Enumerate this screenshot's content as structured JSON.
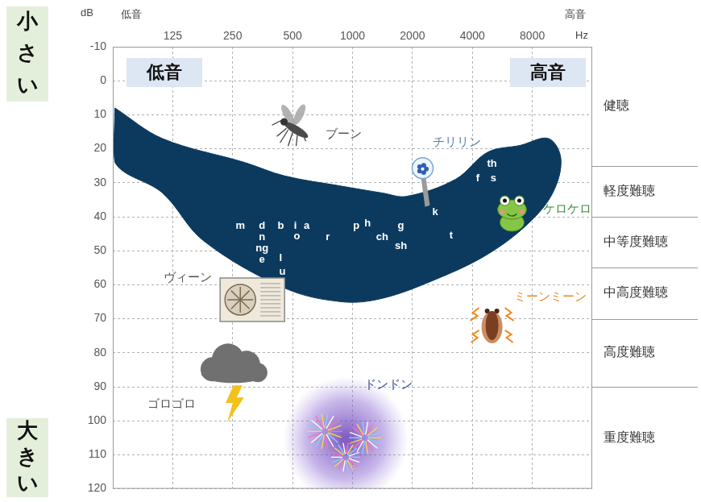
{
  "chart_data": {
    "type": "area",
    "y_unit": "dB",
    "x_unit": "Hz",
    "x_end_labels": [
      "低音",
      "高音"
    ],
    "region_labels": [
      "低音",
      "高音"
    ],
    "loudness_labels": [
      "小さい",
      "大きい"
    ],
    "xlim": [
      62.5,
      16000
    ],
    "xticks": [
      125,
      250,
      500,
      1000,
      2000,
      4000,
      8000
    ],
    "log": "x",
    "ylim": [
      -10,
      120
    ],
    "yticks": [
      -10,
      0,
      10,
      20,
      30,
      40,
      50,
      60,
      70,
      80,
      90,
      100,
      110,
      120
    ],
    "grid": true,
    "series": [
      {
        "color": "#0b3a5e",
        "x": [
          64,
          111,
          286,
          457,
          881,
          1410,
          1870,
          3290,
          4780,
          6960,
          9660,
          11140,
          10130,
          7630,
          4780,
          2720,
          1410,
          881,
          457,
          178,
          111,
          64
        ],
        "values": [
          8,
          17,
          24,
          28,
          31,
          33,
          34,
          29,
          21,
          19,
          17,
          23,
          33,
          42,
          51,
          58,
          64,
          65,
          61,
          47,
          33,
          24
        ]
      }
    ],
    "phonemes": [
      {
        "text": "m",
        "x": 273,
        "y": 42.6
      },
      {
        "text": "d",
        "x": 351,
        "y": 42.6
      },
      {
        "text": "b",
        "x": 436,
        "y": 42.6
      },
      {
        "text": "i",
        "x": 516,
        "y": 42.6
      },
      {
        "text": "a",
        "x": 589,
        "y": 42.6
      },
      {
        "text": "n",
        "x": 351,
        "y": 46.1
      },
      {
        "text": "ng",
        "x": 351,
        "y": 49.4
      },
      {
        "text": "e",
        "x": 351,
        "y": 52.7
      },
      {
        "text": "l",
        "x": 436,
        "y": 52.2
      },
      {
        "text": "u",
        "x": 444,
        "y": 56.2
      },
      {
        "text": "o",
        "x": 526,
        "y": 45.9
      },
      {
        "text": "r",
        "x": 751,
        "y": 46.1
      },
      {
        "text": "p",
        "x": 1045,
        "y": 42.6
      },
      {
        "text": "h",
        "x": 1191,
        "y": 41.9
      },
      {
        "text": "ch",
        "x": 1410,
        "y": 46.1
      },
      {
        "text": "g",
        "x": 1750,
        "y": 42.6
      },
      {
        "text": "sh",
        "x": 1750,
        "y": 48.7
      },
      {
        "text": "k",
        "x": 2600,
        "y": 38.6
      },
      {
        "text": "t",
        "x": 3130,
        "y": 45.6
      },
      {
        "text": "f",
        "x": 4260,
        "y": 28.7
      },
      {
        "text": "th",
        "x": 5020,
        "y": 24.5
      },
      {
        "text": "s",
        "x": 5100,
        "y": 28.7
      }
    ],
    "sounds": [
      {
        "label": "ブーン",
        "x": 502,
        "y": 14,
        "color": "#555555"
      },
      {
        "label": "チリリン",
        "x": 2250,
        "y": 25.7,
        "color": "#4f7fae"
      },
      {
        "label": "ケロケロ",
        "x": 6330,
        "y": 38.6,
        "color": "#3f8f3f"
      },
      {
        "label": "ヴィーン",
        "x": 314,
        "y": 64.4,
        "color": "#555555"
      },
      {
        "label": "ミーンミーン",
        "x": 5020,
        "y": 71.5,
        "color": "#e8892a"
      },
      {
        "label": "ゴロゴロ",
        "x": 248,
        "y": 84.4,
        "color": "#555555"
      },
      {
        "label": "ドンドン",
        "x": 924,
        "y": 105.5,
        "color": "#3d4a9a"
      }
    ],
    "hearing_levels": [
      {
        "label": "健聴",
        "from": -10,
        "to": 25
      },
      {
        "label": "軽度難聴",
        "from": 25,
        "to": 40
      },
      {
        "label": "中等度難聴",
        "from": 40,
        "to": 55
      },
      {
        "label": "中高度難聴",
        "from": 55,
        "to": 70
      },
      {
        "label": "高度難聴",
        "from": 70,
        "to": 90
      },
      {
        "label": "重度難聴",
        "from": 90,
        "to": 120
      }
    ]
  }
}
